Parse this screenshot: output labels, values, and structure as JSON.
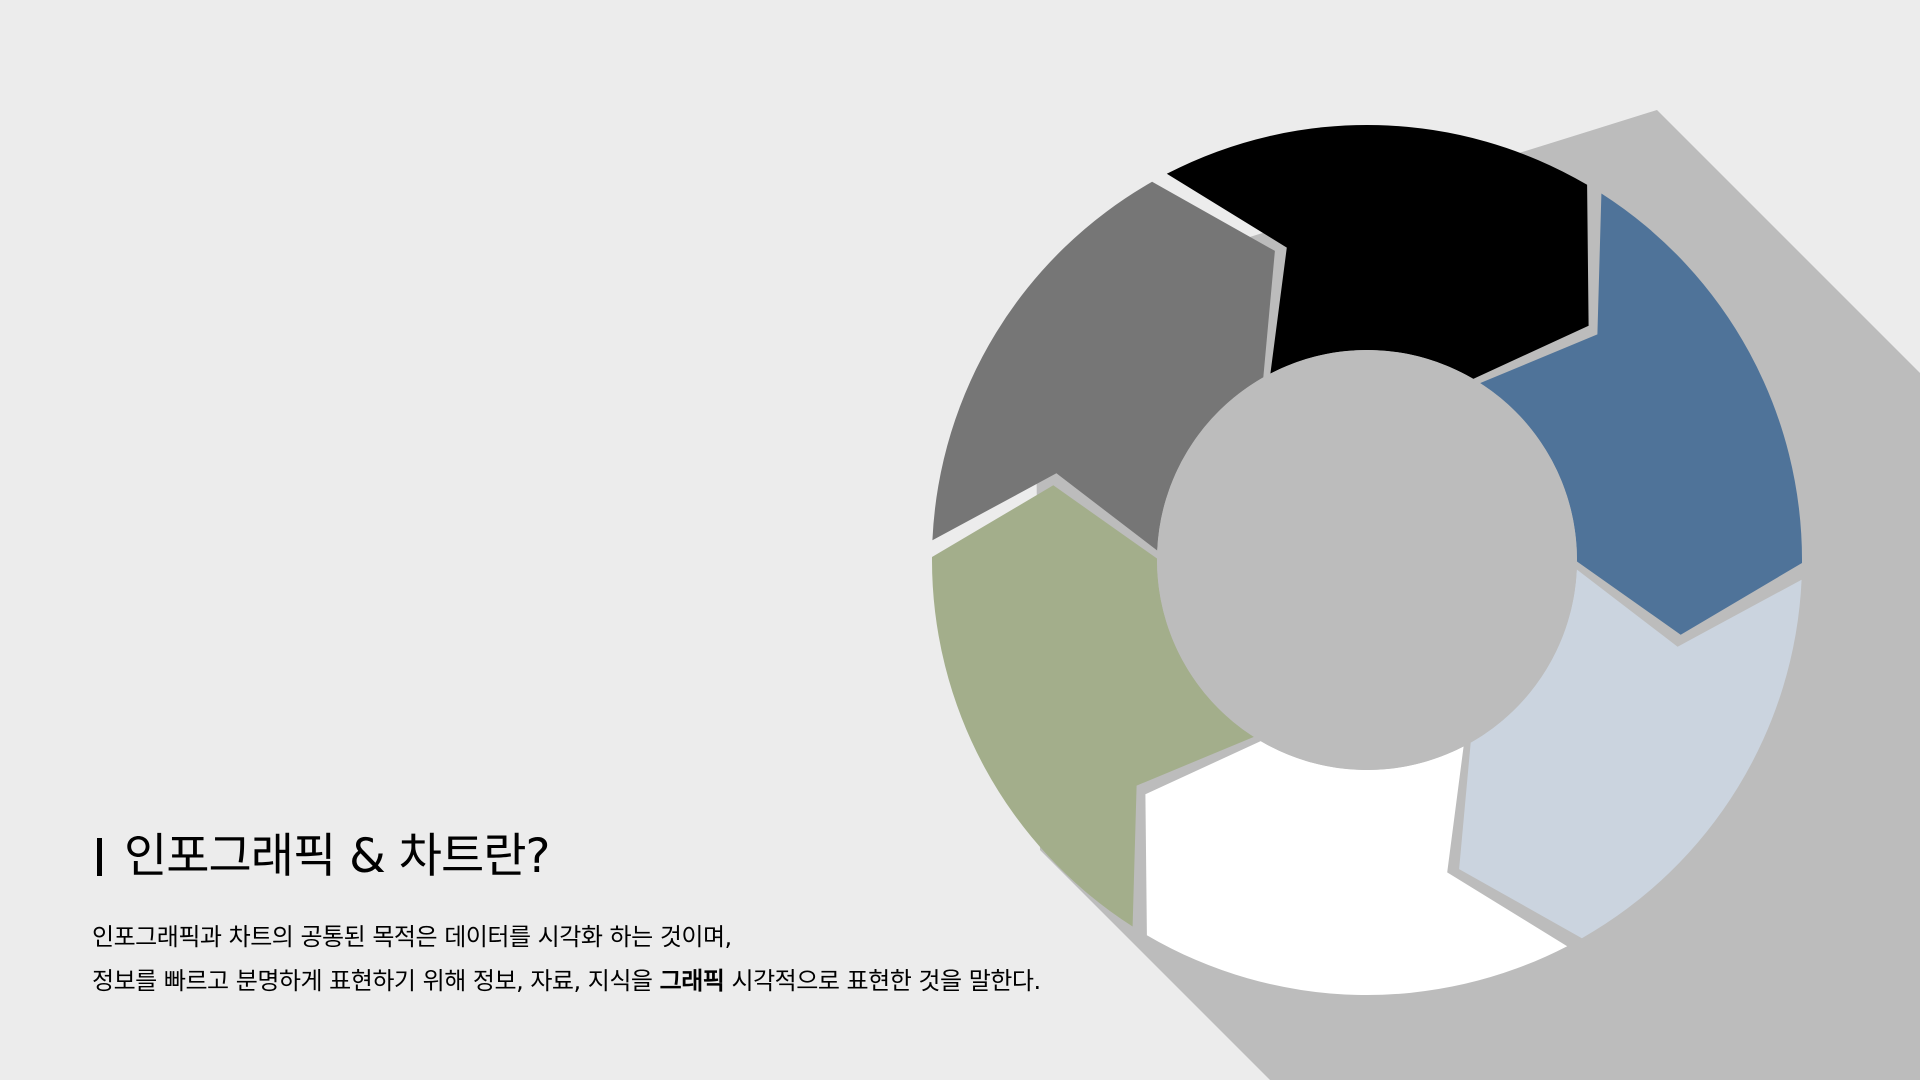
{
  "slide": {
    "title": "인포그래픽 & 차트란?",
    "description": {
      "line1": "인포그래픽과 차트의 공통된 목적은 데이터를 시각화 하는 것이며,",
      "line2_before": "정보를 빠르고 분명하게 표현하기 위해 정보, 자료, 지식을 ",
      "line2_bold": "그래픽",
      "line2_after": " 시각적으로 표현한 것을 말한다."
    }
  },
  "theme": {
    "background": "#ececec",
    "shadow": "#bcbcbc",
    "hub": "#bcbcbc",
    "segment_colors": [
      "#4f7399",
      "#cbd4df",
      "#ffffff",
      "#a3ae8b",
      "#767676",
      "#000000"
    ]
  },
  "cycle": {
    "segment_count": 6,
    "segment_names": [
      "steel-blue",
      "light-blue",
      "white",
      "sage-green",
      "gray",
      "black"
    ]
  }
}
